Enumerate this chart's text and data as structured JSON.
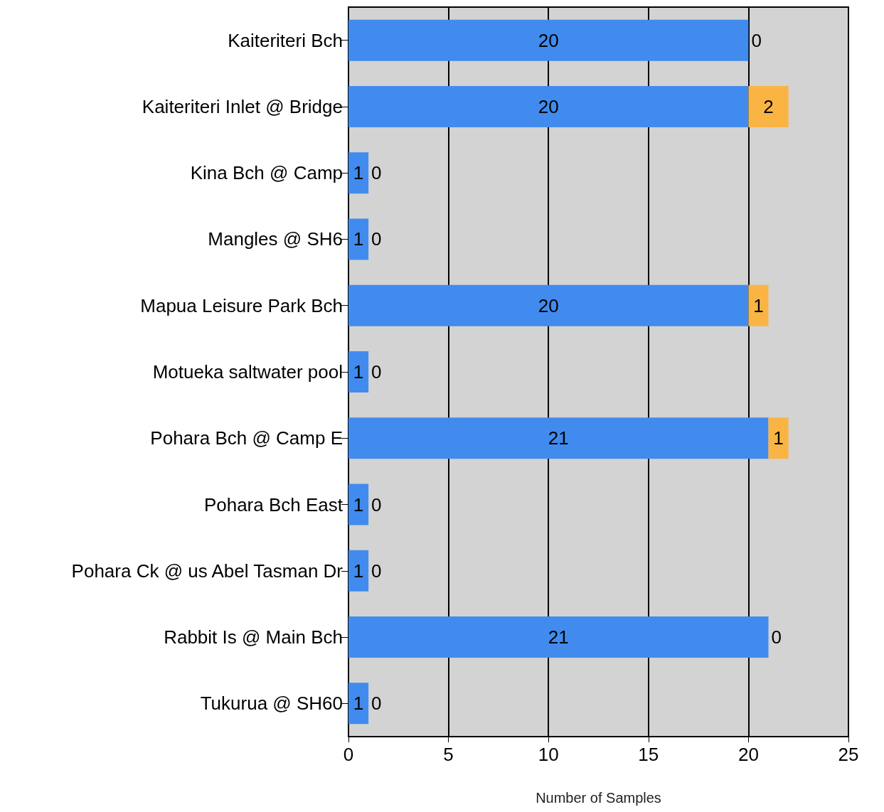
{
  "chart_data": {
    "type": "bar",
    "orientation": "horizontal",
    "stacked": true,
    "xlabel": "Number of Samples",
    "categories": [
      "Kaiteriteri Bch",
      "Kaiteriteri Inlet @ Bridge",
      "Kina Bch @ Camp",
      "Mangles @ SH6",
      "Mapua Leisure Park Bch",
      "Motueka saltwater pool",
      "Pohara Bch @ Camp E",
      "Pohara Bch East",
      "Pohara Ck @ us Abel Tasman Dr",
      "Rabbit Is @ Main Bch",
      "Tukurua @ SH60"
    ],
    "series": [
      {
        "color": "#418bee",
        "values": [
          20,
          20,
          1,
          1,
          20,
          1,
          21,
          1,
          1,
          21,
          1
        ]
      },
      {
        "color": "#f9b444",
        "values": [
          0,
          2,
          0,
          0,
          1,
          0,
          1,
          0,
          0,
          0,
          0
        ]
      }
    ],
    "xlim": [
      0,
      25
    ],
    "xticks": [
      0,
      5,
      10,
      15,
      20,
      25
    ],
    "grid": "x",
    "data_labels": true
  }
}
